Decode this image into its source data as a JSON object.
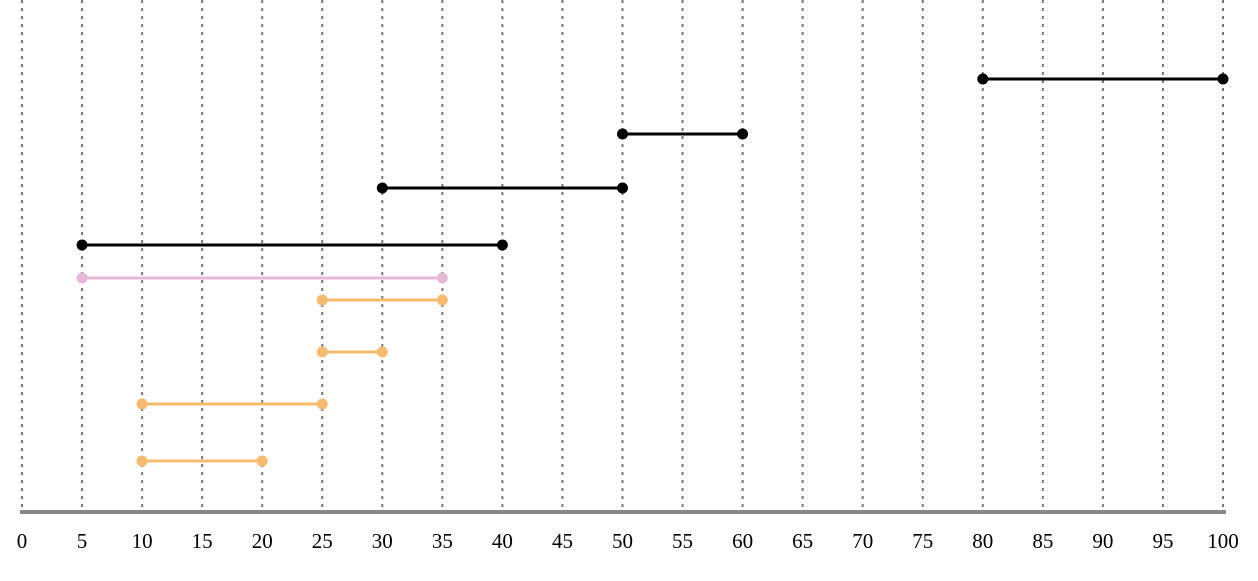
{
  "chart_data": {
    "type": "interval",
    "intervals": [
      {
        "start": 80,
        "end": 100,
        "color": "#000000"
      },
      {
        "start": 50,
        "end": 60,
        "color": "#000000"
      },
      {
        "start": 30,
        "end": 50,
        "color": "#000000"
      },
      {
        "start": 5,
        "end": 40,
        "color": "#000000"
      },
      {
        "start": 5,
        "end": 35,
        "color": "#e6b8d8"
      },
      {
        "start": 25,
        "end": 35,
        "color": "#f6bb6e"
      },
      {
        "start": 25,
        "end": 30,
        "color": "#f6bb6e"
      },
      {
        "start": 10,
        "end": 25,
        "color": "#f6bb6e"
      },
      {
        "start": 10,
        "end": 20,
        "color": "#f6bb6e"
      }
    ],
    "xlim": [
      0,
      100
    ],
    "xticks": [
      0,
      5,
      10,
      15,
      20,
      25,
      30,
      35,
      40,
      45,
      50,
      55,
      60,
      65,
      70,
      75,
      80,
      85,
      90,
      95,
      100
    ],
    "grid": true
  }
}
